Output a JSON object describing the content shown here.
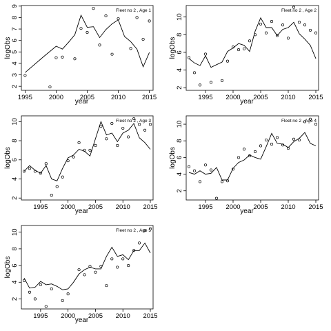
{
  "chart_data": [
    {
      "type": "scatter",
      "title": "Fleet no 2 , Age 1",
      "xlabel": "year",
      "ylabel": "logObs",
      "xlim": [
        1994.4,
        2015.6
      ],
      "ylim": [
        1.65,
        9.05
      ],
      "xticks": [
        1995,
        2000,
        2005,
        2010,
        2015
      ],
      "yticks": [
        2,
        3,
        4,
        5,
        6,
        7,
        8,
        9
      ],
      "observed": {
        "x": [
          1995,
          1999,
          2000,
          2001,
          2003,
          2004,
          2005,
          2006,
          2007,
          2008,
          2009,
          2010,
          2012,
          2013,
          2014,
          2015
        ],
        "y": [
          2.95,
          1.95,
          4.5,
          4.55,
          4.4,
          7.05,
          6.7,
          8.8,
          5.6,
          8.15,
          4.8,
          7.9,
          5.3,
          8.0,
          6.1,
          7.7
        ]
      },
      "fitted": {
        "x": [
          1995,
          1998,
          2000,
          2001,
          2002,
          2003,
          2004,
          2005,
          2006,
          2007,
          2008,
          2009,
          2010,
          2011,
          2012,
          2013,
          2014,
          2015
        ],
        "y": [
          3.2,
          4.6,
          5.5,
          5.25,
          5.85,
          6.5,
          8.2,
          7.15,
          7.2,
          6.25,
          6.95,
          7.45,
          7.8,
          6.35,
          5.9,
          5.25,
          3.7,
          4.95
        ]
      }
    },
    {
      "type": "scatter",
      "title": "Fleet no 2 , Age 2",
      "xlabel": "year",
      "ylabel": "logObs",
      "xlim": [
        1991.5,
        2015.5
      ],
      "ylim": [
        1.7,
        11.3
      ],
      "xticks": [
        1995,
        2000,
        2005,
        2010,
        2015
      ],
      "yticks": [
        2,
        4,
        6,
        8,
        10
      ],
      "observed": {
        "x": [
          1992,
          1993,
          1994,
          1995,
          1996,
          1998,
          1999,
          2000,
          2001,
          2002,
          2003,
          2004,
          2005,
          2006,
          2007,
          2008,
          2009,
          2010,
          2011,
          2012,
          2013,
          2014,
          2015
        ],
        "y": [
          5.4,
          3.7,
          2.3,
          5.8,
          2.6,
          2.8,
          5.0,
          6.6,
          6.3,
          6.4,
          7.3,
          8.0,
          9.2,
          8.2,
          9.5,
          7.9,
          9.1,
          7.6,
          11.1,
          9.4,
          9.1,
          8.5,
          8.2
        ]
      },
      "fitted": {
        "x": [
          1992,
          1993,
          1994,
          1995,
          1996,
          1997,
          1998,
          1999,
          2000,
          2001,
          2002,
          2003,
          2004,
          2005,
          2006,
          2007,
          2008,
          2009,
          2010,
          2011,
          2012,
          2013,
          2014,
          2015
        ],
        "y": [
          5.3,
          4.8,
          4.5,
          5.6,
          4.3,
          4.6,
          4.9,
          6.1,
          6.5,
          7.0,
          6.8,
          6.1,
          8.4,
          9.9,
          8.8,
          8.8,
          7.9,
          8.6,
          8.8,
          9.4,
          8.1,
          7.5,
          6.8,
          5.3
        ]
      }
    },
    {
      "type": "scatter",
      "title": "Fleet no 2 , Age 3",
      "xlabel": "year",
      "ylabel": "logObs",
      "xlim": [
        1991.5,
        2015.5
      ],
      "ylim": [
        1.8,
        10.6
      ],
      "xticks": [
        1995,
        2000,
        2005,
        2010,
        2015
      ],
      "yticks": [
        2,
        4,
        6,
        8,
        10
      ],
      "observed": {
        "x": [
          1992,
          1993,
          1994,
          1995,
          1996,
          1997,
          1998,
          1999,
          2000,
          2001,
          2002,
          2003,
          2004,
          2005,
          2006,
          2007,
          2008,
          2009,
          2010,
          2011,
          2012,
          2013,
          2014,
          2015
        ],
        "y": [
          4.8,
          5.1,
          4.8,
          4.6,
          5.6,
          2.3,
          3.2,
          4.2,
          5.9,
          6.3,
          7.8,
          7.0,
          7.0,
          7.5,
          9.5,
          8.2,
          9.8,
          7.5,
          9.3,
          8.4,
          10.3,
          9.7,
          9.1,
          9.7
        ]
      },
      "fitted": {
        "x": [
          1992,
          1993,
          1994,
          1995,
          1996,
          1997,
          1998,
          1999,
          2000,
          2001,
          2002,
          2003,
          2004,
          2005,
          2006,
          2007,
          2008,
          2009,
          2010,
          2011,
          2012,
          2013,
          2014,
          2015
        ],
        "y": [
          4.8,
          5.4,
          4.9,
          4.6,
          5.4,
          4.0,
          3.8,
          5.1,
          6.2,
          6.5,
          7.1,
          6.9,
          6.4,
          8.2,
          10.0,
          8.6,
          8.8,
          7.9,
          8.8,
          9.1,
          9.8,
          8.3,
          7.8,
          7.1
        ]
      }
    },
    {
      "type": "scatter",
      "title": "Fleet no 2 , Age 4",
      "xlabel": "year",
      "ylabel": "logObs",
      "xlim": [
        1991.5,
        2015.5
      ],
      "ylim": [
        0.9,
        11.0
      ],
      "xticks": [
        1995,
        2000,
        2005,
        2010,
        2015
      ],
      "yticks": [
        2,
        4,
        6,
        8,
        10
      ],
      "observed": {
        "x": [
          1992,
          1993,
          1994,
          1995,
          1996,
          1997,
          1998,
          1999,
          2000,
          2001,
          2002,
          2003,
          2004,
          2005,
          2006,
          2007,
          2008,
          2009,
          2010,
          2011,
          2012,
          2013,
          2014,
          2015
        ],
        "y": [
          4.9,
          4.4,
          3.1,
          5.1,
          4.5,
          1.1,
          3.1,
          3.2,
          4.6,
          6.0,
          7.0,
          6.2,
          6.7,
          7.4,
          8.1,
          7.6,
          8.4,
          7.5,
          7.1,
          8.2,
          8.1,
          10.3,
          10.6,
          10.0
        ]
      },
      "fitted": {
        "x": [
          1992,
          1993,
          1994,
          1995,
          1996,
          1997,
          1998,
          1999,
          2000,
          2001,
          2002,
          2003,
          2004,
          2005,
          2006,
          2007,
          2008,
          2009,
          2010,
          2011,
          2012,
          2013,
          2014,
          2015
        ],
        "y": [
          4.2,
          4.0,
          4.4,
          4.0,
          4.1,
          4.8,
          3.3,
          3.3,
          4.7,
          5.4,
          5.7,
          6.3,
          6.0,
          5.8,
          7.3,
          8.9,
          7.7,
          7.6,
          7.2,
          7.9,
          8.3,
          9.0,
          7.7,
          7.4
        ]
      }
    },
    {
      "type": "scatter",
      "title": "Fleet no 2 , Age 5",
      "xlabel": "year",
      "ylabel": "logObs",
      "xlim": [
        1991.5,
        2015.5
      ],
      "ylim": [
        0.8,
        10.8
      ],
      "xticks": [
        1995,
        2000,
        2005,
        2010,
        2015
      ],
      "yticks": [
        2,
        4,
        6,
        8,
        10
      ],
      "observed": {
        "x": [
          1992,
          1993,
          1994,
          1995,
          1996,
          1997,
          1999,
          2000,
          2002,
          2003,
          2004,
          2005,
          2006,
          2007,
          2008,
          2009,
          2010,
          2011,
          2012,
          2013,
          2014,
          2015
        ],
        "y": [
          4.2,
          2.8,
          2.0,
          3.7,
          1.1,
          3.2,
          1.8,
          2.6,
          5.5,
          4.9,
          5.9,
          5.2,
          5.9,
          3.6,
          6.8,
          5.8,
          6.8,
          6.0,
          7.8,
          8.7,
          10.2,
          10.4
        ]
      },
      "fitted": {
        "x": [
          1992,
          1993,
          1994,
          1995,
          1996,
          1997,
          1998,
          1999,
          2000,
          2001,
          2002,
          2003,
          2004,
          2005,
          2006,
          2007,
          2008,
          2009,
          2010,
          2011,
          2012,
          2013,
          2014,
          2015
        ],
        "y": [
          4.5,
          3.3,
          3.4,
          4.1,
          3.7,
          3.8,
          3.5,
          3.1,
          3.2,
          4.0,
          5.0,
          5.5,
          5.8,
          5.6,
          5.6,
          7.1,
          8.2,
          7.1,
          7.3,
          6.7,
          7.8,
          7.8,
          8.7,
          7.5
        ]
      }
    }
  ]
}
